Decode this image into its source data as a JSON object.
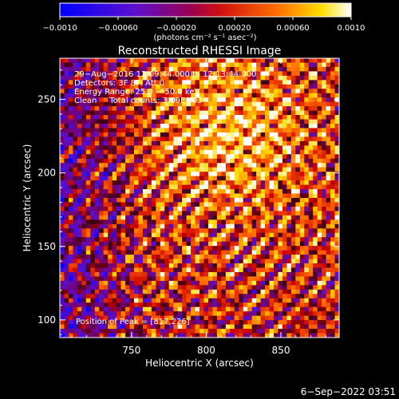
{
  "colorbar": {
    "tick_labels": [
      "−0.0010",
      "−0.00060",
      "−0.00020",
      "0.00020",
      "0.00060",
      "0.0010"
    ],
    "ticks": [
      -0.001,
      -0.0006,
      -0.0002,
      0.0002,
      0.0006,
      0.001
    ],
    "units_label": "(photons cm⁻² s⁻¹ asec⁻²)",
    "range": [
      -0.001,
      0.001
    ],
    "colors": [
      "#0000ff",
      "#7a00cc",
      "#cc0033",
      "#ff4000",
      "#ffc000",
      "#ffffff"
    ]
  },
  "chart_data": {
    "type": "heatmap",
    "title": "Reconstructed RHESSI Image",
    "xlabel": "Heliocentric X (arcsec)",
    "ylabel": "Heliocentric Y (arcsec)",
    "xlim": [
      702,
      889
    ],
    "ylim": [
      88,
      278
    ],
    "x_ticks": [
      750,
      800,
      850
    ],
    "y_ticks": [
      100,
      150,
      200,
      250
    ],
    "x_tick_labels": [
      "750",
      "800",
      "850"
    ],
    "y_tick_labels": [
      "100",
      "150",
      "200",
      "250"
    ],
    "peak": [
      817,
      226
    ],
    "annotations": [
      "29−Aug−2016 12:09:44.000 to 12:13:44.000",
      "Detectors: 3F 8F, Att 0",
      "Energy Range: 25.0 − 50.0 keV",
      "Clean     Total counts: 3.09E+03"
    ],
    "peak_label": "Position of Peak = [817,226]"
  },
  "footer": {
    "date": "6−Sep−2022 03:51"
  }
}
